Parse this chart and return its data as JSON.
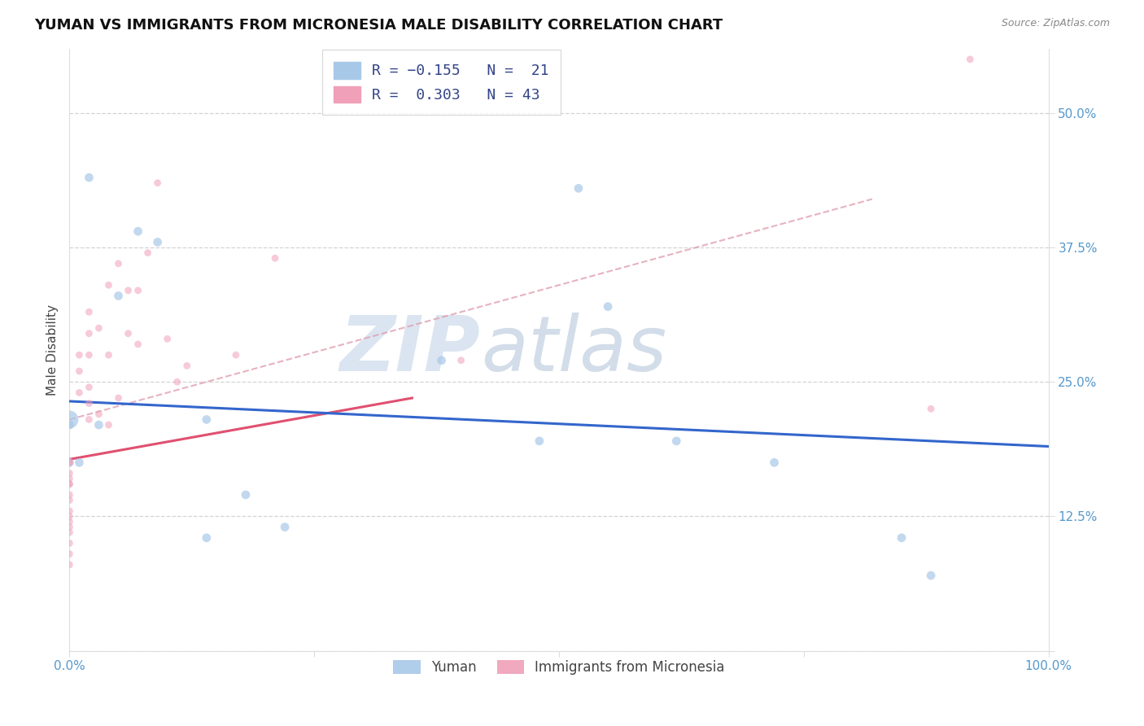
{
  "title": "YUMAN VS IMMIGRANTS FROM MICRONESIA MALE DISABILITY CORRELATION CHART",
  "source_text": "Source: ZipAtlas.com",
  "ylabel": "Male Disability",
  "xlim": [
    0.0,
    1.0
  ],
  "ylim": [
    0.0,
    0.56
  ],
  "ytick_positions": [
    0.0,
    0.125,
    0.25,
    0.375,
    0.5
  ],
  "ytick_labels_right": [
    "",
    "12.5%",
    "25.0%",
    "37.5%",
    "50.0%"
  ],
  "series_blue": {
    "name": "Yuman",
    "color": "#a8c8e8",
    "alpha": 0.7,
    "x": [
      0.02,
      0.07,
      0.09,
      0.05,
      0.0,
      0.0,
      0.0,
      0.01,
      0.03,
      0.14,
      0.14,
      0.22,
      0.55,
      0.62,
      0.72,
      0.85,
      0.88,
      0.52,
      0.18,
      0.38,
      0.48
    ],
    "y": [
      0.44,
      0.39,
      0.38,
      0.33,
      0.215,
      0.21,
      0.175,
      0.175,
      0.21,
      0.215,
      0.105,
      0.115,
      0.32,
      0.195,
      0.175,
      0.105,
      0.07,
      0.43,
      0.145,
      0.27,
      0.195
    ],
    "sizes": [
      60,
      60,
      60,
      60,
      250,
      60,
      60,
      60,
      60,
      60,
      60,
      60,
      60,
      60,
      60,
      60,
      60,
      60,
      60,
      60,
      60
    ]
  },
  "series_pink": {
    "name": "Immigrants from Micronesia",
    "color": "#f0a0b8",
    "alpha": 0.55,
    "x": [
      0.0,
      0.0,
      0.0,
      0.0,
      0.0,
      0.0,
      0.0,
      0.0,
      0.0,
      0.0,
      0.0,
      0.0,
      0.0,
      0.0,
      0.0,
      0.0,
      0.01,
      0.01,
      0.01,
      0.02,
      0.02,
      0.02,
      0.02,
      0.02,
      0.02,
      0.03,
      0.03,
      0.04,
      0.04,
      0.04,
      0.05,
      0.05,
      0.06,
      0.06,
      0.07,
      0.07,
      0.08,
      0.09,
      0.1,
      0.11,
      0.12,
      0.17,
      0.21,
      0.4,
      0.88,
      0.92
    ],
    "y": [
      0.175,
      0.175,
      0.165,
      0.16,
      0.155,
      0.155,
      0.145,
      0.14,
      0.13,
      0.125,
      0.12,
      0.115,
      0.11,
      0.1,
      0.09,
      0.08,
      0.275,
      0.26,
      0.24,
      0.315,
      0.295,
      0.275,
      0.245,
      0.23,
      0.215,
      0.3,
      0.22,
      0.34,
      0.275,
      0.21,
      0.36,
      0.235,
      0.335,
      0.295,
      0.335,
      0.285,
      0.37,
      0.435,
      0.29,
      0.25,
      0.265,
      0.275,
      0.365,
      0.27,
      0.225,
      0.55
    ],
    "sizes": [
      40,
      40,
      40,
      40,
      40,
      40,
      40,
      40,
      40,
      40,
      40,
      40,
      40,
      40,
      40,
      40,
      40,
      40,
      40,
      40,
      40,
      40,
      40,
      40,
      40,
      40,
      40,
      40,
      40,
      40,
      40,
      40,
      40,
      40,
      40,
      40,
      40,
      40,
      40,
      40,
      40,
      40,
      40,
      40,
      40,
      40
    ]
  },
  "blue_trend_line": {
    "x0": 0.0,
    "y0": 0.232,
    "x1": 1.0,
    "y1": 0.19
  },
  "pink_trend_line": {
    "x0": 0.0,
    "y0": 0.178,
    "x1": 0.35,
    "y1": 0.235
  },
  "dashed_line": {
    "x0": 0.0,
    "y0": 0.215,
    "x1": 0.82,
    "y1": 0.42
  },
  "watermark_zip": "ZIP",
  "watermark_atlas": "atlas",
  "background_color": "#ffffff",
  "grid_color": "#d0d0d0",
  "tick_color": "#5599cc",
  "tick_fontsize": 11,
  "axis_label_fontsize": 11,
  "title_fontsize": 13
}
